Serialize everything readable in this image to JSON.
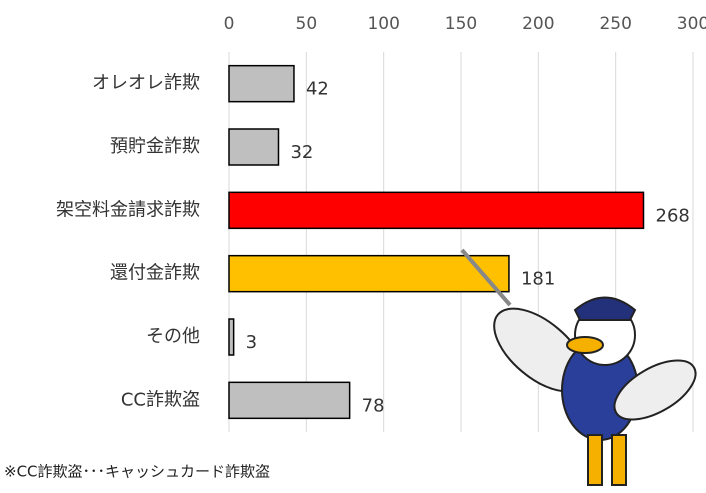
{
  "chart_data": {
    "type": "bar",
    "orientation": "horizontal",
    "categories": [
      "オレオレ詐欺",
      "預貯金詐欺",
      "架空料金請求詐欺",
      "還付金詐欺",
      "その他",
      "CC詐欺盗"
    ],
    "values": [
      42,
      32,
      268,
      181,
      3,
      78
    ],
    "colors": [
      "#bfbfbf",
      "#bfbfbf",
      "#ff0000",
      "#ffc000",
      "#bfbfbf",
      "#bfbfbf"
    ],
    "xlim": [
      0,
      300
    ],
    "xticks": [
      0,
      50,
      100,
      150,
      200,
      250,
      300
    ],
    "grid": true,
    "note": "※CC詐欺盗･･･キャッシュカード詐欺盗"
  }
}
